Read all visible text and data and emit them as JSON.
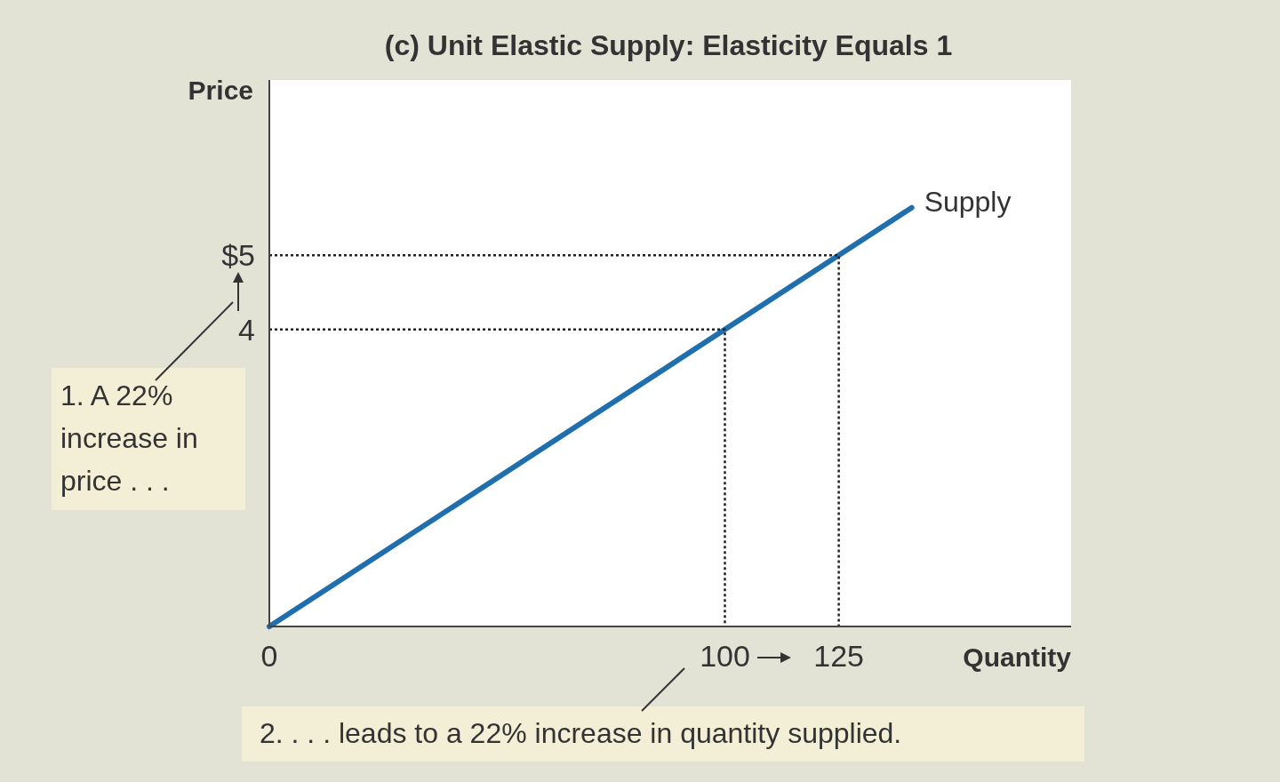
{
  "chart_data": {
    "type": "line",
    "title": "(c) Unit Elastic Supply: Elasticity Equals 1",
    "xlabel": "Quantity",
    "ylabel": "Price",
    "xlim": [
      0,
      176
    ],
    "ylim": [
      0,
      7.36
    ],
    "xticks": [
      0,
      100,
      125
    ],
    "yticks": [
      {
        "value": 4,
        "label": "4"
      },
      {
        "value": 5,
        "label": "$5"
      }
    ],
    "series": [
      {
        "name": "Supply",
        "color": "#1f6fae",
        "x": [
          0,
          141
        ],
        "values": [
          0,
          5.64
        ],
        "line_style": "solid"
      },
      {
        "color": "#222222",
        "x": [
          0,
          100,
          100
        ],
        "values": [
          4,
          4,
          0
        ],
        "line_style": "dotted"
      },
      {
        "color": "#222222",
        "x": [
          0,
          125,
          125
        ],
        "values": [
          5,
          5,
          0
        ],
        "line_style": "dotted"
      }
    ],
    "annotations": [
      "1. A 22% increase in price . . .",
      "2. . . . leads to a 22% increase in quantity supplied."
    ]
  }
}
